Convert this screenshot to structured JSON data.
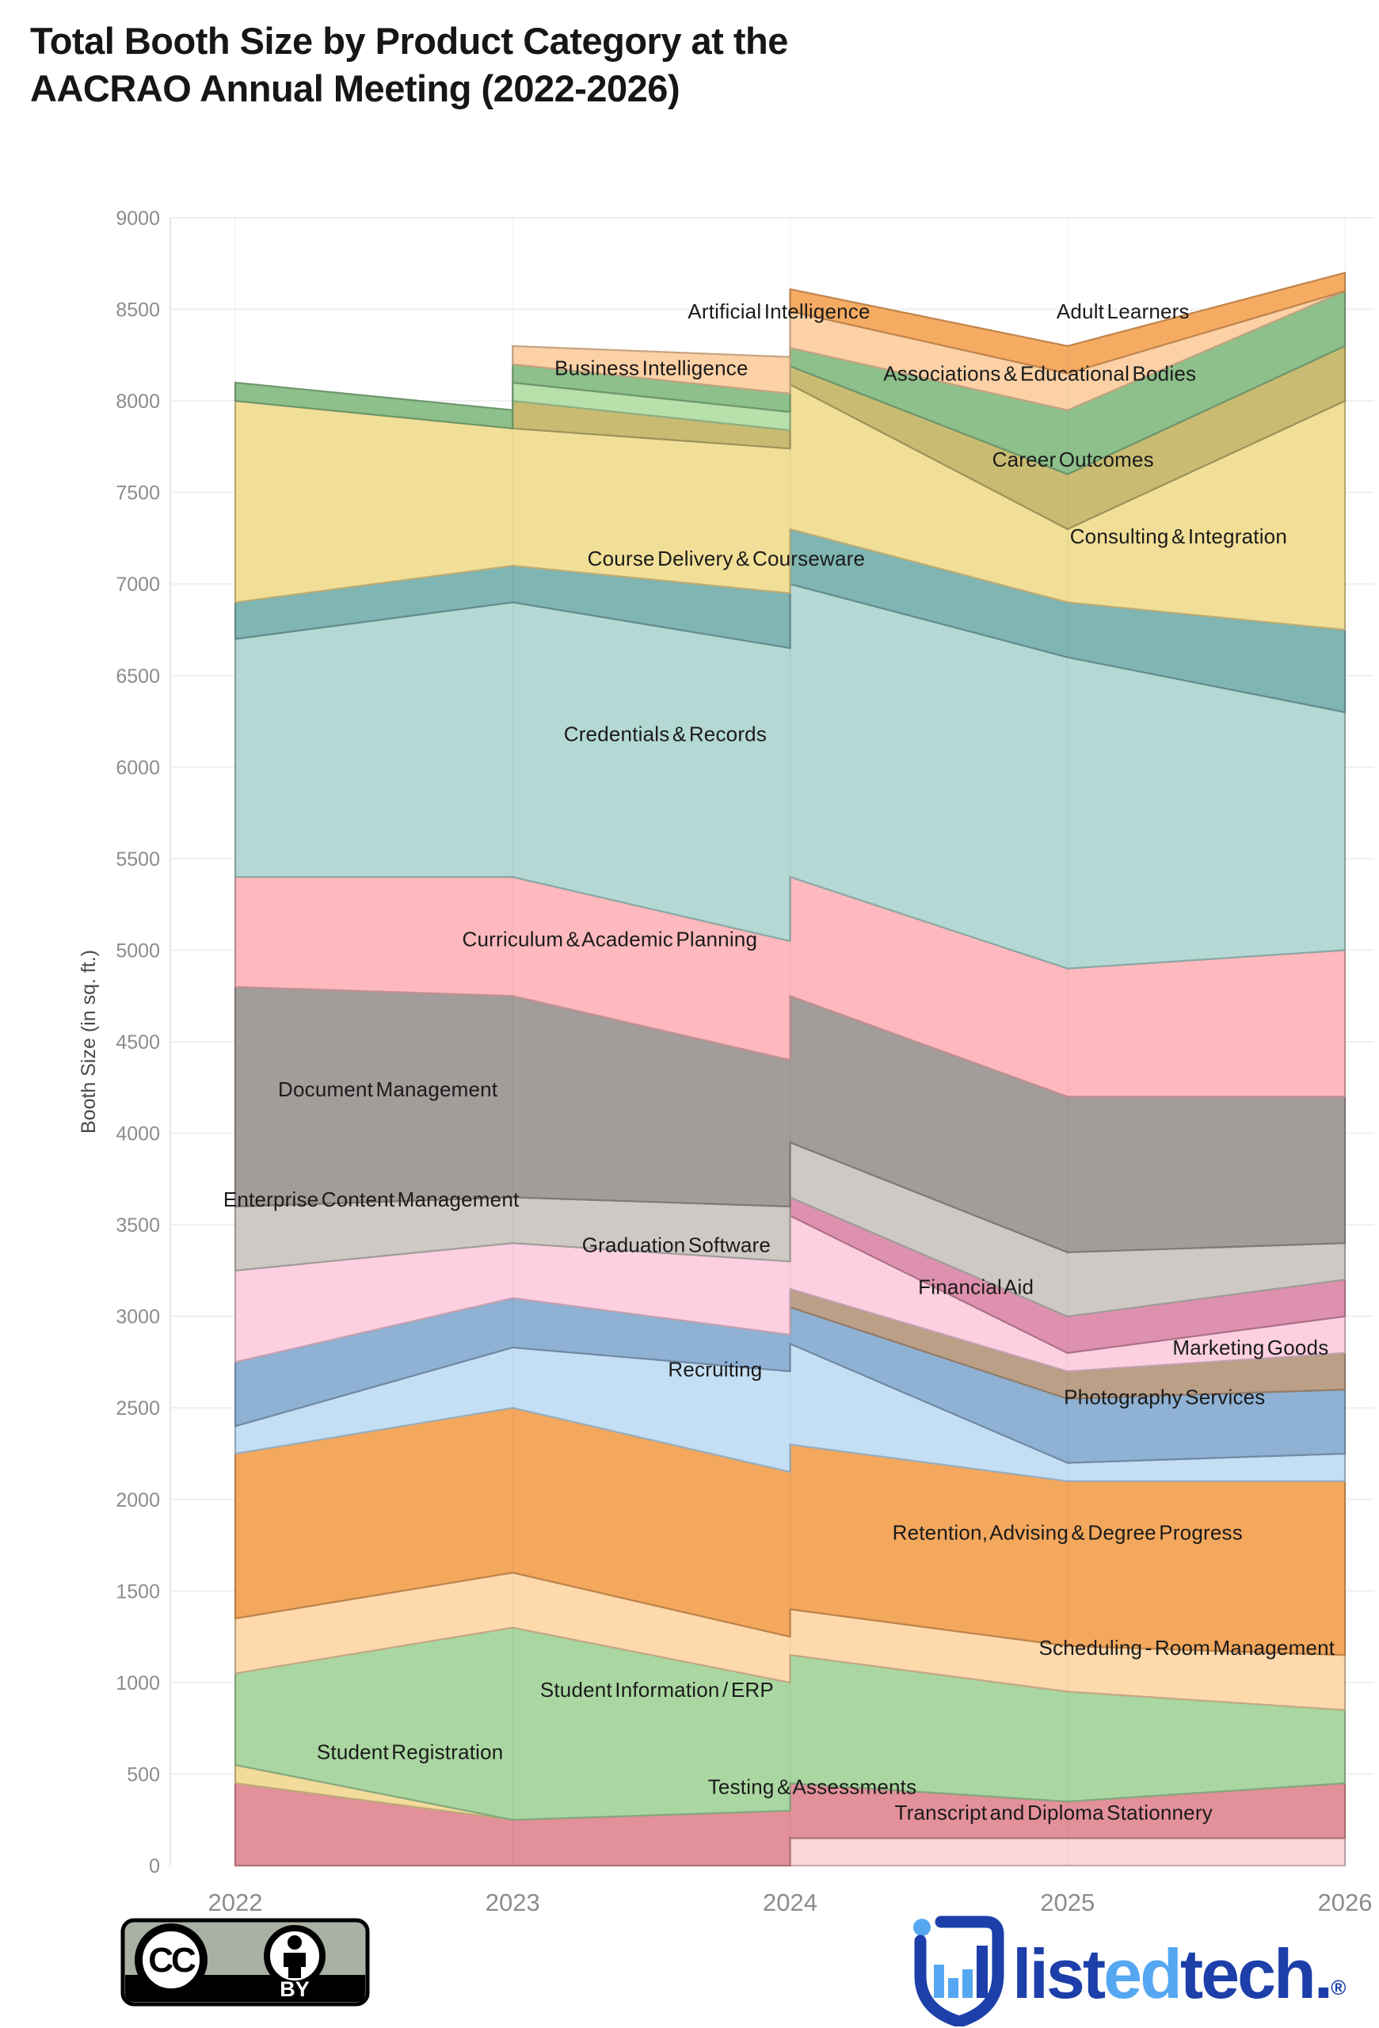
{
  "title": {
    "line1": "Total Booth Size by Product Category at the",
    "line2": "AACRAO Annual Meeting (2022-2026)"
  },
  "chart_data": {
    "type": "area",
    "stacked": true,
    "x": [
      2022,
      2023,
      2024,
      2025,
      2026
    ],
    "xtick_labels": [
      "2022",
      "2023",
      "2024",
      "2025",
      "2026"
    ],
    "ylabel": "Booth Size (in sq. ft.)",
    "ylim": [
      0,
      9000
    ],
    "ytick_step": 500,
    "grid": true,
    "legend": "labels drawn on areas",
    "series_bottom_to_top": [
      {
        "name": "Transcript and Diploma Stationnery",
        "color": "#fcd6da",
        "values": [
          null,
          null,
          150,
          150,
          150
        ],
        "label": {
          "x": 2024.95,
          "v": 290
        }
      },
      {
        "name": "Testing & Assessments",
        "color": "#e2909a",
        "values": [
          450,
          250,
          300,
          200,
          300
        ],
        "label": {
          "x": 2024.08,
          "v": 430
        }
      },
      {
        "name": "Student Registration",
        "color": "#f3db9b",
        "values": [
          100,
          0,
          null,
          null,
          null
        ],
        "label": {
          "x": 2022.63,
          "v": 620
        }
      },
      {
        "name": "Student Information / ERP",
        "color": "#aad7a1",
        "values": [
          500,
          1050,
          700,
          600,
          400
        ],
        "label": {
          "x": 2023.52,
          "v": 960
        }
      },
      {
        "name": "Scheduling - Room Management",
        "color": "#fdd9ac",
        "values": [
          300,
          300,
          250,
          250,
          300
        ],
        "label": {
          "x": 2025.43,
          "v": 1190
        }
      },
      {
        "name": "Retention, Advising & Degree Progress",
        "color": "#f3a85d",
        "values": [
          900,
          900,
          900,
          900,
          950
        ],
        "label": {
          "x": 2025.0,
          "v": 1820
        }
      },
      {
        "name": "Recruiting",
        "color": "#c4dff3",
        "values": [
          150,
          330,
          550,
          100,
          150
        ],
        "label": {
          "x": 2023.73,
          "v": 2710
        }
      },
      {
        "name": "Photography Services",
        "color": "#8fb1d4",
        "values": [
          350,
          270,
          200,
          350,
          350
        ],
        "label": {
          "x": 2025.35,
          "v": 2560
        }
      },
      {
        "name": "Marketing Goods",
        "color": "#bb9f87",
        "values": [
          null,
          null,
          100,
          150,
          200
        ],
        "label": {
          "x": 2025.66,
          "v": 2830
        }
      },
      {
        "name": "Graduation Software",
        "color": "#fcd0e1",
        "values": [
          500,
          300,
          400,
          100,
          200
        ],
        "label": {
          "x": 2023.59,
          "v": 3390
        }
      },
      {
        "name": "Financial Aid",
        "color": "#de91ae",
        "values": [
          null,
          null,
          100,
          200,
          200
        ],
        "label": {
          "x": 2024.67,
          "v": 3160
        }
      },
      {
        "name": "Enterprise Content Management",
        "color": "#cfc9c6",
        "values": [
          350,
          250,
          300,
          350,
          200
        ],
        "label": {
          "x": 2022.49,
          "v": 3640
        }
      },
      {
        "name": "Document Management",
        "color": "#a29c9a",
        "values": [
          1200,
          1100,
          800,
          850,
          800
        ],
        "label": {
          "x": 2022.55,
          "v": 4240
        }
      },
      {
        "name": "Curriculum & Academic Planning",
        "color": "#fdb9bd",
        "values": [
          600,
          650,
          650,
          700,
          800
        ],
        "label": {
          "x": 2023.35,
          "v": 5060
        }
      },
      {
        "name": "Credentials & Records",
        "color": "#b4d8d4",
        "values": [
          1300,
          1500,
          1600,
          1700,
          1300
        ],
        "label": {
          "x": 2023.55,
          "v": 6180
        }
      },
      {
        "name": "Course Delivery & Courseware",
        "color": "#7fb5b3",
        "values": [
          200,
          200,
          300,
          300,
          450
        ],
        "label": {
          "x": 2023.77,
          "v": 7140
        }
      },
      {
        "name": "Consulting & Integration",
        "color": "#f2df97",
        "values": [
          1100,
          750,
          790,
          400,
          1250
        ],
        "label": {
          "x": 2025.4,
          "v": 7260
        }
      },
      {
        "name": "Career Outcomes",
        "color": "#c9bc72",
        "values": [
          null,
          150,
          100,
          300,
          300
        ],
        "label": {
          "x": 2025.02,
          "v": 7680
        }
      },
      {
        "name": "Business Intelligence",
        "color": "#b7e0aa",
        "values": [
          null,
          100,
          100,
          null,
          null
        ],
        "label": {
          "x": 2023.5,
          "v": 8180
        }
      },
      {
        "name": "Associations & Educational Bodies",
        "color": "#8dc08b",
        "values": [
          100,
          100,
          100,
          350,
          300
        ],
        "label": {
          "x": 2024.9,
          "v": 8150
        }
      },
      {
        "name": "Artificial Intelligence",
        "color": "#fcd1a5",
        "values": [
          null,
          100,
          200,
          200,
          0
        ],
        "label": {
          "x": 2023.96,
          "v": 8490
        }
      },
      {
        "name": "Adult Learners",
        "color": "#f6ab63",
        "values": [
          null,
          null,
          120,
          150,
          100
        ],
        "label": {
          "x": 2025.2,
          "v": 8490
        }
      }
    ]
  },
  "footer": {
    "license": {
      "cc_text": "CC",
      "by_text": "BY"
    },
    "brand": {
      "word_part1": "list",
      "word_part2": "ed",
      "word_part3": "tech.",
      "registered": "®",
      "dark_blue": "#1c3faa",
      "light_blue": "#55a7f2"
    }
  },
  "axis_colors": {
    "tick": "#8c8c8c",
    "grid": "#efefef",
    "axis_title": "#4a4a4a",
    "label_text": "#1b1b1b"
  }
}
